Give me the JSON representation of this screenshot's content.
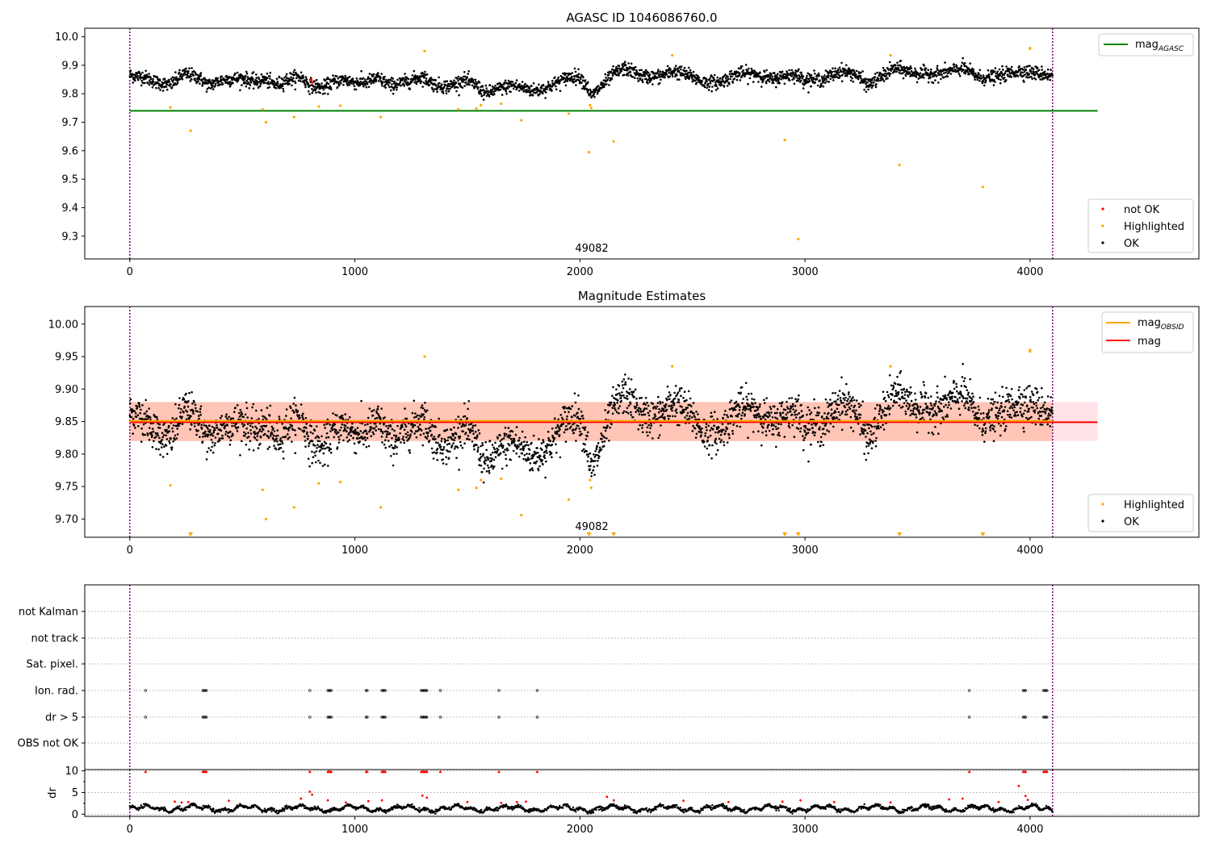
{
  "chart_data": [
    {
      "type": "scatter",
      "title": "AGASC ID 1046086760.0",
      "annotation": "49082",
      "xlim": [
        -200,
        4750
      ],
      "ylim": [
        9.22,
        10.03
      ],
      "x_ticks": [
        0,
        1000,
        2000,
        3000,
        4000
      ],
      "y_ticks": [
        9.3,
        9.4,
        9.5,
        9.6,
        9.7,
        9.8,
        9.9,
        10.0
      ],
      "y_tick_labels": [
        "9.3",
        "9.4",
        "9.5",
        "9.6",
        "9.7",
        "9.8",
        "9.9",
        "10.0"
      ],
      "vlines": [
        0,
        4100
      ],
      "reference_line": {
        "value": 9.74,
        "x_range": [
          0,
          4300
        ],
        "color": "#008000"
      },
      "legend_top": {
        "position": "top-right",
        "entries": [
          {
            "label": "mag",
            "sub": "AGASC",
            "color": "#008000"
          }
        ]
      },
      "legend_bottom": {
        "position": "bottom-right",
        "entries": [
          {
            "label": "not OK",
            "color": "#ff0000"
          },
          {
            "label": "Highlighted",
            "color": "#ffa500"
          },
          {
            "label": "OK",
            "color": "#000000"
          }
        ]
      },
      "ok_series": {
        "description_free": true,
        "baseline_knots": [
          [
            0,
            9.865
          ],
          [
            60,
            9.86
          ],
          [
            120,
            9.84
          ],
          [
            180,
            9.83
          ],
          [
            240,
            9.87
          ],
          [
            300,
            9.86
          ],
          [
            350,
            9.83
          ],
          [
            420,
            9.85
          ],
          [
            500,
            9.855
          ],
          [
            560,
            9.84
          ],
          [
            600,
            9.85
          ],
          [
            650,
            9.83
          ],
          [
            700,
            9.85
          ],
          [
            760,
            9.86
          ],
          [
            800,
            9.83
          ],
          [
            860,
            9.82
          ],
          [
            900,
            9.84
          ],
          [
            950,
            9.85
          ],
          [
            1000,
            9.84
          ],
          [
            1050,
            9.84
          ],
          [
            1100,
            9.855
          ],
          [
            1160,
            9.83
          ],
          [
            1220,
            9.84
          ],
          [
            1300,
            9.86
          ],
          [
            1360,
            9.83
          ],
          [
            1420,
            9.825
          ],
          [
            1480,
            9.85
          ],
          [
            1540,
            9.83
          ],
          [
            1580,
            9.8
          ],
          [
            1650,
            9.82
          ],
          [
            1700,
            9.83
          ],
          [
            1750,
            9.82
          ],
          [
            1800,
            9.81
          ],
          [
            1850,
            9.82
          ],
          [
            1900,
            9.84
          ],
          [
            1950,
            9.86
          ],
          [
            2000,
            9.86
          ],
          [
            2030,
            9.83
          ],
          [
            2050,
            9.79
          ],
          [
            2100,
            9.83
          ],
          [
            2150,
            9.87
          ],
          [
            2200,
            9.89
          ],
          [
            2280,
            9.86
          ],
          [
            2350,
            9.86
          ],
          [
            2420,
            9.88
          ],
          [
            2500,
            9.86
          ],
          [
            2550,
            9.84
          ],
          [
            2620,
            9.84
          ],
          [
            2700,
            9.87
          ],
          [
            2780,
            9.87
          ],
          [
            2850,
            9.85
          ],
          [
            2950,
            9.87
          ],
          [
            3000,
            9.85
          ],
          [
            3080,
            9.85
          ],
          [
            3160,
            9.88
          ],
          [
            3220,
            9.87
          ],
          [
            3280,
            9.83
          ],
          [
            3340,
            9.86
          ],
          [
            3400,
            9.89
          ],
          [
            3500,
            9.87
          ],
          [
            3600,
            9.87
          ],
          [
            3700,
            9.89
          ],
          [
            3780,
            9.855
          ],
          [
            3850,
            9.86
          ],
          [
            3950,
            9.88
          ],
          [
            4050,
            9.87
          ],
          [
            4100,
            9.865
          ]
        ],
        "x_start": 0,
        "x_end": 4100,
        "spread": 0.012,
        "color": "#000000"
      },
      "highlighted": [
        [
          180,
          9.752
        ],
        [
          270,
          9.67
        ],
        [
          590,
          9.745
        ],
        [
          605,
          9.7
        ],
        [
          730,
          9.718
        ],
        [
          840,
          9.755
        ],
        [
          935,
          9.758
        ],
        [
          1115,
          9.718
        ],
        [
          1310,
          9.95
        ],
        [
          1460,
          9.745
        ],
        [
          1540,
          9.748
        ],
        [
          1560,
          9.76
        ],
        [
          1650,
          9.765
        ],
        [
          1740,
          9.707
        ],
        [
          1950,
          9.73
        ],
        [
          2040,
          9.595
        ],
        [
          2045,
          9.76
        ],
        [
          2050,
          9.75
        ],
        [
          2150,
          9.633
        ],
        [
          2410,
          9.935
        ],
        [
          2910,
          9.638
        ],
        [
          2970,
          9.29
        ],
        [
          3380,
          9.935
        ],
        [
          3420,
          9.55
        ],
        [
          3790,
          9.473
        ],
        [
          4000,
          9.96
        ],
        [
          4000,
          9.958
        ]
      ],
      "not_ok": [
        [
          805,
          9.85
        ],
        [
          812,
          9.84
        ]
      ]
    },
    {
      "type": "scatter",
      "title": "Magnitude Estimates",
      "annotation": "49082",
      "xlim": [
        -200,
        4750
      ],
      "ylim": [
        9.672,
        10.027
      ],
      "x_ticks": [
        0,
        1000,
        2000,
        3000,
        4000
      ],
      "y_ticks": [
        9.7,
        9.75,
        9.8,
        9.85,
        9.9,
        9.95,
        10.0
      ],
      "y_tick_labels": [
        "9.70",
        "9.75",
        "9.80",
        "9.85",
        "9.90",
        "9.95",
        "10.00"
      ],
      "vlines": [
        0,
        4100
      ],
      "mag": {
        "value": 9.849,
        "x_range": [
          0,
          4300
        ],
        "band": [
          9.82,
          9.88
        ],
        "color": "#ff0000",
        "band_color": "#ffc0cb"
      },
      "mag_obsid": {
        "value": 9.851,
        "x_range": [
          0,
          4100
        ],
        "band": [
          9.82,
          9.88
        ],
        "color": "#ffa500",
        "band_color": "#ffa07a"
      },
      "legend_top": {
        "position": "top-right",
        "entries": [
          {
            "label": "mag",
            "sub": "OBSID",
            "color": "#ffa500"
          },
          {
            "label": "mag",
            "sub": "",
            "color": "#ff0000"
          }
        ]
      },
      "legend_bottom": {
        "position": "bottom-right",
        "entries": [
          {
            "label": "Highlighted",
            "color": "#ffa500"
          },
          {
            "label": "OK",
            "color": "#000000"
          }
        ]
      },
      "highlighted": [
        [
          180,
          9.752
        ],
        [
          590,
          9.745
        ],
        [
          605,
          9.7
        ],
        [
          730,
          9.718
        ],
        [
          840,
          9.755
        ],
        [
          935,
          9.757
        ],
        [
          1115,
          9.718
        ],
        [
          1310,
          9.95
        ],
        [
          1460,
          9.745
        ],
        [
          1540,
          9.748
        ],
        [
          1560,
          9.76
        ],
        [
          1650,
          9.762
        ],
        [
          1740,
          9.706
        ],
        [
          1950,
          9.73
        ],
        [
          2045,
          9.76
        ],
        [
          2050,
          9.748
        ],
        [
          2410,
          9.935
        ],
        [
          3380,
          9.935
        ],
        [
          4000,
          9.96
        ],
        [
          4000,
          9.958
        ]
      ],
      "clipped_markers_x": [
        270,
        2040,
        2150,
        2910,
        2970,
        3420,
        3790
      ]
    },
    {
      "type": "scatter",
      "title": "",
      "xlim": [
        -200,
        4750
      ],
      "x_ticks": [
        0,
        1000,
        2000,
        3000,
        4000
      ],
      "vlines": [
        0,
        4100
      ],
      "flag_rows": [
        "not Kalman",
        "not track",
        "Sat. pixel.",
        "Ion. rad.",
        "dr > 5",
        "OBS not OK"
      ],
      "flag_events_x": [
        70,
        325,
        330,
        335,
        340,
        800,
        880,
        885,
        890,
        895,
        1050,
        1055,
        1120,
        1125,
        1130,
        1135,
        1295,
        1300,
        1305,
        1310,
        1315,
        1320,
        1380,
        1640,
        1810,
        3730,
        3970,
        3975,
        3980,
        4060,
        4065,
        4070,
        4075
      ],
      "flag_rows_with_events": [
        "Ion. rad.",
        "dr > 5"
      ],
      "dr_axis": {
        "ylabel": "dr",
        "ylim": [
          -0.5,
          10.3
        ],
        "y_ticks": [
          0,
          5,
          10
        ],
        "y_tick_labels": [
          "0",
          "5",
          "10"
        ],
        "minor_ticks": [
          2.5,
          7.5
        ]
      },
      "dr_high_x": [
        70,
        325,
        330,
        335,
        340,
        800,
        880,
        885,
        890,
        895,
        1050,
        1055,
        1120,
        1125,
        1130,
        1135,
        1295,
        1300,
        1305,
        1310,
        1315,
        1320,
        1380,
        1640,
        1810,
        3730,
        3970,
        3975,
        3980,
        4060,
        4065,
        4070,
        4075
      ],
      "dr_red_points": [
        [
          200,
          2.9
        ],
        [
          230,
          2.7
        ],
        [
          260,
          2.8
        ],
        [
          440,
          3.1
        ],
        [
          760,
          3.6
        ],
        [
          800,
          5.2
        ],
        [
          810,
          4.5
        ],
        [
          880,
          3.2
        ],
        [
          960,
          2.7
        ],
        [
          1060,
          3.0
        ],
        [
          1120,
          3.2
        ],
        [
          1300,
          4.3
        ],
        [
          1320,
          3.8
        ],
        [
          1500,
          2.8
        ],
        [
          1650,
          2.6
        ],
        [
          1720,
          2.8
        ],
        [
          1760,
          2.9
        ],
        [
          2120,
          4.0
        ],
        [
          2150,
          3.2
        ],
        [
          2460,
          3.1
        ],
        [
          2660,
          2.8
        ],
        [
          2900,
          2.9
        ],
        [
          2980,
          3.2
        ],
        [
          3130,
          2.8
        ],
        [
          3380,
          2.7
        ],
        [
          3640,
          3.4
        ],
        [
          3700,
          3.6
        ],
        [
          3860,
          2.8
        ],
        [
          3950,
          6.5
        ],
        [
          3980,
          4.2
        ],
        [
          3990,
          3.3
        ]
      ]
    }
  ]
}
